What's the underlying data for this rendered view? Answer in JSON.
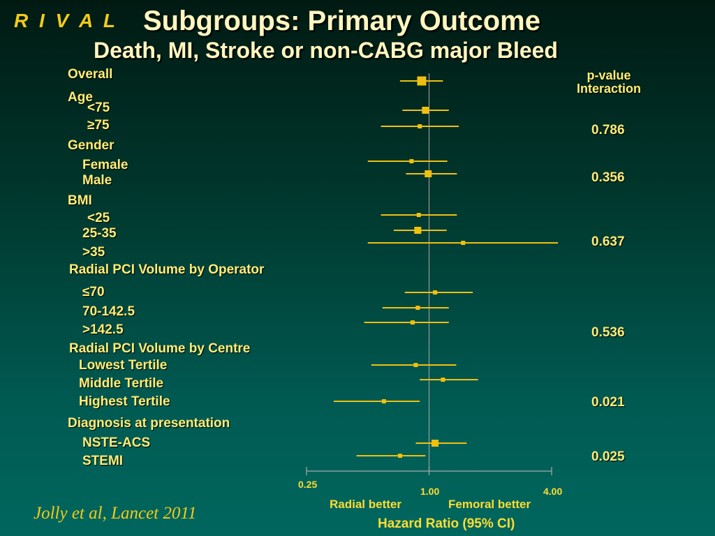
{
  "brand": "R I V A L",
  "title": "Subgroups: Primary Outcome",
  "subtitle": "Death, MI, Stroke or non-CABG major Bleed",
  "citation": "Jolly et al, Lancet 2011",
  "pvalue_header": [
    "p-value",
    "Interaction"
  ],
  "colors": {
    "marker": "#f0c010",
    "text": "#ffee77",
    "axis": "#aaaaaa"
  },
  "chart_data": {
    "type": "forest",
    "title": "Subgroups: Primary Outcome",
    "xlabel": "Hazard Ratio (95% CI)",
    "xscale": "log",
    "xlim": [
      0.25,
      4.0
    ],
    "xticks": [
      {
        "value": 0.25,
        "label": "0.25"
      },
      {
        "value": 1.0,
        "label": "1.00"
      },
      {
        "value": 4.0,
        "label": "4.00"
      }
    ],
    "left_note": "Radial better",
    "right_note": "Femoral better",
    "rows": [
      {
        "label": "Overall",
        "header": false,
        "hr": 0.92,
        "lo": 0.72,
        "hi": 1.17,
        "size": "large"
      },
      {
        "label": "Age",
        "header": true
      },
      {
        "label": "<75",
        "hr": 0.96,
        "lo": 0.74,
        "hi": 1.25,
        "size": "medium"
      },
      {
        "label": "≥75",
        "hr": 0.9,
        "lo": 0.58,
        "hi": 1.4,
        "size": "small",
        "p": "0.786"
      },
      {
        "label": "Gender",
        "header": true
      },
      {
        "label": "Female",
        "hr": 0.82,
        "lo": 0.5,
        "hi": 1.23,
        "size": "small"
      },
      {
        "label": "Male",
        "hr": 0.99,
        "lo": 0.77,
        "hi": 1.37,
        "size": "medium",
        "p": "0.356"
      },
      {
        "label": "BMI",
        "header": true
      },
      {
        "label": "<25",
        "hr": 0.89,
        "lo": 0.58,
        "hi": 1.37,
        "size": "small"
      },
      {
        "label": "25-35",
        "hr": 0.88,
        "lo": 0.67,
        "hi": 1.22,
        "size": "medium"
      },
      {
        "label": ">35",
        "hr": 1.47,
        "lo": 0.5,
        "hi": 4.3,
        "size": "small",
        "p": "0.637"
      },
      {
        "label": "Radial PCI Volume by Operator",
        "header": true
      },
      {
        "label": "≤70",
        "hr": 1.07,
        "lo": 0.76,
        "hi": 1.64,
        "size": "small"
      },
      {
        "label": "70-142.5",
        "hr": 0.88,
        "lo": 0.59,
        "hi": 1.25,
        "size": "small"
      },
      {
        "label": ">142.5",
        "hr": 0.83,
        "lo": 0.48,
        "hi": 1.25,
        "size": "small",
        "p": "0.536"
      },
      {
        "label": "Radial PCI Volume by Centre",
        "header": true
      },
      {
        "label": "Lowest Tertile",
        "hr": 0.86,
        "lo": 0.52,
        "hi": 1.36,
        "size": "small"
      },
      {
        "label": "Middle Tertile",
        "hr": 1.17,
        "lo": 0.9,
        "hi": 1.74,
        "size": "small"
      },
      {
        "label": "Highest Tertile",
        "hr": 0.6,
        "lo": 0.34,
        "hi": 0.9,
        "size": "small",
        "p": "0.021"
      },
      {
        "label": "Diagnosis at presentation",
        "header": true
      },
      {
        "label": "NSTE-ACS",
        "hr": 1.07,
        "lo": 0.86,
        "hi": 1.53,
        "size": "medium"
      },
      {
        "label": "STEMI",
        "hr": 0.72,
        "lo": 0.44,
        "hi": 0.96,
        "size": "small",
        "p": "0.025"
      }
    ]
  }
}
